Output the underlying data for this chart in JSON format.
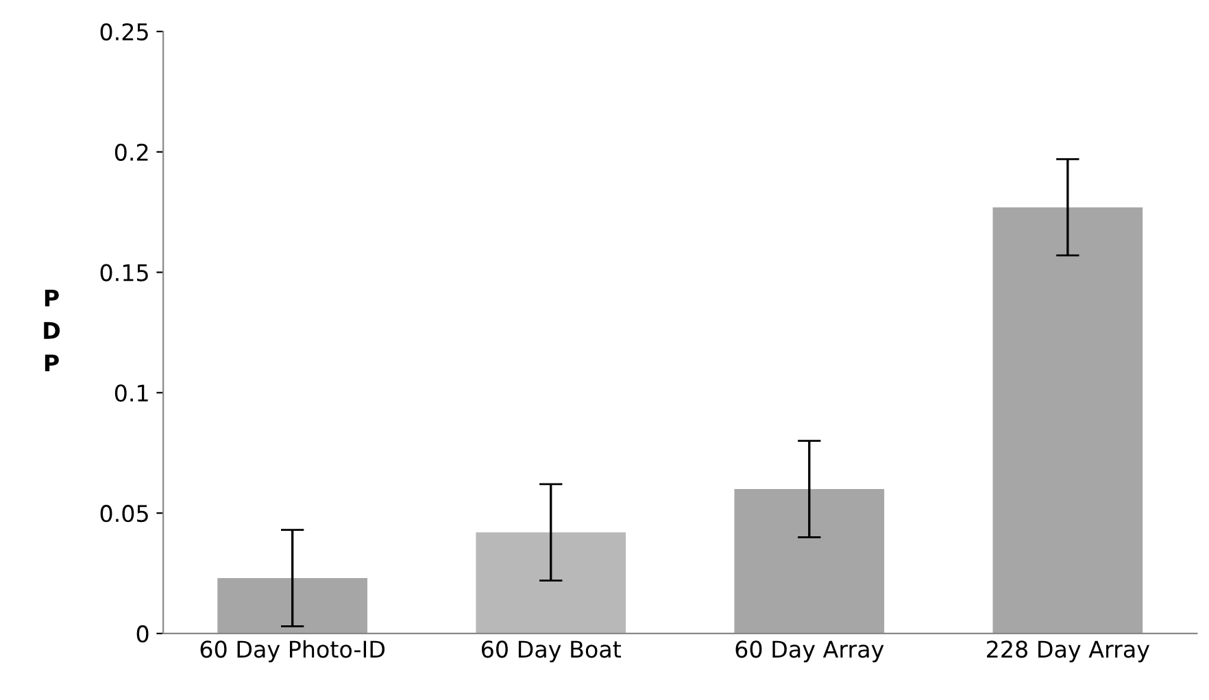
{
  "chart_data": {
    "type": "bar",
    "ylabel": "PDP",
    "categories": [
      "60 Day Photo-ID",
      "60 Day Boat",
      "60 Day Array",
      "228 Day Array"
    ],
    "values": [
      0.023,
      0.042,
      0.06,
      0.177
    ],
    "colors": [
      "#a6a6a6",
      "#b8b8b8",
      "#a6a6a6",
      "#a6a6a6"
    ],
    "errors": [
      0.02,
      0.02,
      0.02,
      0.02
    ],
    "ylim": [
      0,
      0.25
    ],
    "yticks": [
      0,
      0.05,
      0.1,
      0.15,
      0.2,
      0.25
    ],
    "grid": false,
    "legend": false
  }
}
